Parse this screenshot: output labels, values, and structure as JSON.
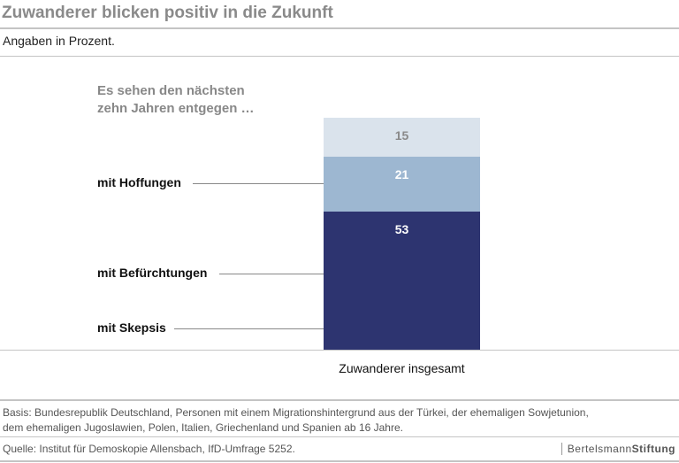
{
  "title": "Zuwanderer blicken positiv in die Zukunft",
  "subtitle": "Angaben in Prozent.",
  "chart_data": {
    "type": "bar",
    "stacked": true,
    "title": "Zuwanderer blicken positiv in die Zukunft",
    "question_line1": "Es sehen den nächsten",
    "question_line2": "zehn Jahren entgegen …",
    "categories": [
      "Zuwanderer insgesamt"
    ],
    "series": [
      {
        "name": "mit Hoffungen",
        "values": [
          53
        ],
        "color": "#2d3470",
        "label_color": "#ffffff"
      },
      {
        "name": "mit Befürchtungen",
        "values": [
          21
        ],
        "color": "#9db7d1",
        "label_color": "#ffffff"
      },
      {
        "name": "mit Skepsis",
        "values": [
          15
        ],
        "color": "#dae3ec",
        "label_color": "#8a8a8a"
      }
    ]
  },
  "footer": {
    "basis_line1": "Basis: Bundesrepublik Deutschland, Personen mit einem Migrationshintergrund aus der Türkei, der ehemaligen Sowjetunion,",
    "basis_line2": "dem ehemaligen Jugoslawien, Polen, Italien, Griechenland und Spanien ab 16 Jahre.",
    "source": "Quelle: Institut für Demoskopie Allensbach, IfD-Umfrage 5252.",
    "logo_a": "Bertelsmann",
    "logo_b": "Stiftung"
  }
}
